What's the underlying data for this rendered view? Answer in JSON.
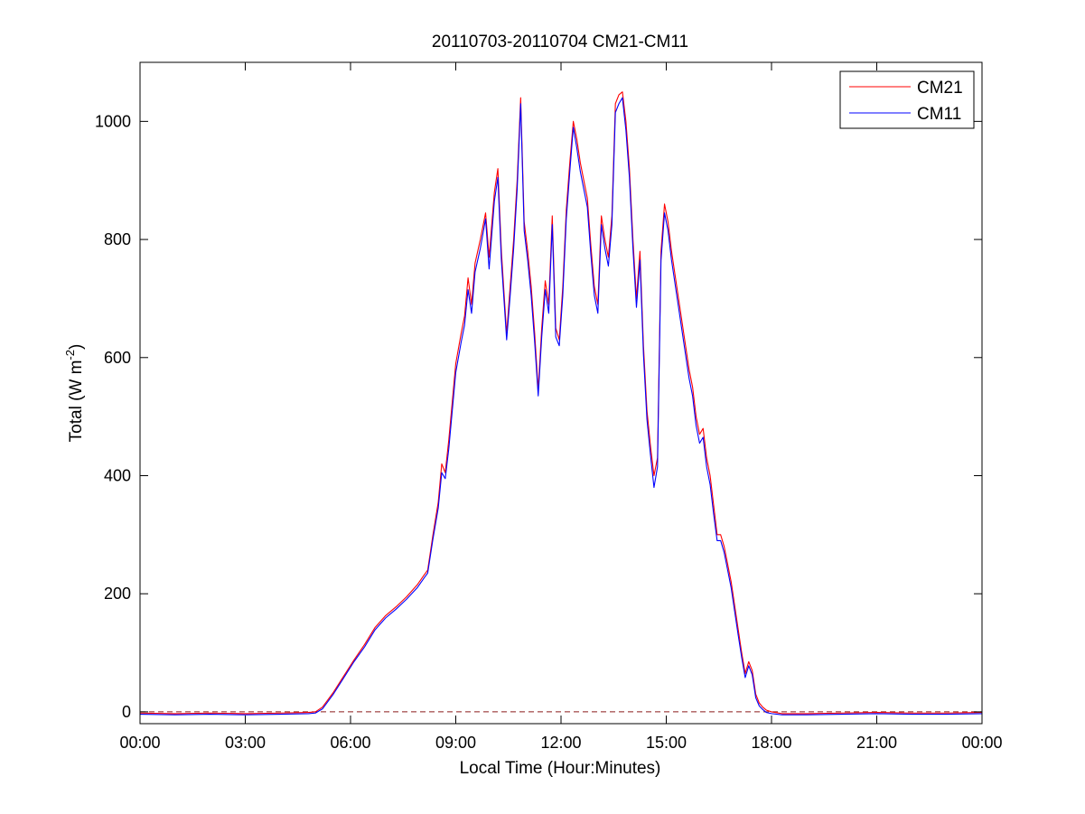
{
  "chart_data": {
    "type": "line",
    "title": "20110703-20110704 CM21-CM11",
    "xlabel": "Local Time (Hour:Minutes)",
    "ylabel_parts": {
      "main": "Total (W m",
      "sup": "-2",
      "close": ")"
    },
    "xlim": [
      0,
      24
    ],
    "ylim": [
      -20,
      1100
    ],
    "x_ticks": [
      0,
      3,
      6,
      9,
      12,
      15,
      18,
      21,
      24
    ],
    "x_tick_labels": [
      "00:00",
      "03:00",
      "06:00",
      "09:00",
      "12:00",
      "15:00",
      "18:00",
      "21:00",
      "00:00"
    ],
    "y_ticks": [
      0,
      200,
      400,
      600,
      800,
      1000
    ],
    "y_tick_labels": [
      "0",
      "200",
      "400",
      "600",
      "800",
      "1000"
    ],
    "legend_position": "top-right",
    "reference_line": {
      "y": 0,
      "style": "dashed",
      "color": "#8b1a1a"
    },
    "series": [
      {
        "name": "CM21",
        "color": "#ff0000",
        "points": [
          [
            0.0,
            -2
          ],
          [
            1.0,
            -3
          ],
          [
            2.0,
            -2
          ],
          [
            3.0,
            -3
          ],
          [
            4.0,
            -2
          ],
          [
            4.8,
            -1
          ],
          [
            5.0,
            0
          ],
          [
            5.2,
            8
          ],
          [
            5.5,
            32
          ],
          [
            5.8,
            60
          ],
          [
            6.1,
            88
          ],
          [
            6.4,
            114
          ],
          [
            6.7,
            143
          ],
          [
            7.0,
            163
          ],
          [
            7.3,
            178
          ],
          [
            7.6,
            195
          ],
          [
            7.9,
            215
          ],
          [
            8.1,
            232
          ],
          [
            8.2,
            240
          ],
          [
            8.35,
            300
          ],
          [
            8.5,
            355
          ],
          [
            8.6,
            420
          ],
          [
            8.7,
            405
          ],
          [
            8.8,
            460
          ],
          [
            8.9,
            525
          ],
          [
            9.0,
            590
          ],
          [
            9.15,
            640
          ],
          [
            9.25,
            670
          ],
          [
            9.35,
            735
          ],
          [
            9.45,
            690
          ],
          [
            9.55,
            760
          ],
          [
            9.7,
            800
          ],
          [
            9.85,
            845
          ],
          [
            9.95,
            770
          ],
          [
            10.1,
            880
          ],
          [
            10.2,
            920
          ],
          [
            10.3,
            780
          ],
          [
            10.45,
            640
          ],
          [
            10.55,
            720
          ],
          [
            10.65,
            800
          ],
          [
            10.75,
            900
          ],
          [
            10.85,
            1040
          ],
          [
            10.95,
            830
          ],
          [
            11.05,
            780
          ],
          [
            11.15,
            720
          ],
          [
            11.25,
            640
          ],
          [
            11.35,
            545
          ],
          [
            11.45,
            650
          ],
          [
            11.55,
            730
          ],
          [
            11.65,
            690
          ],
          [
            11.75,
            840
          ],
          [
            11.85,
            650
          ],
          [
            11.95,
            630
          ],
          [
            12.05,
            720
          ],
          [
            12.15,
            850
          ],
          [
            12.25,
            930
          ],
          [
            12.35,
            1000
          ],
          [
            12.45,
            970
          ],
          [
            12.55,
            930
          ],
          [
            12.65,
            900
          ],
          [
            12.75,
            870
          ],
          [
            12.85,
            790
          ],
          [
            12.95,
            720
          ],
          [
            13.05,
            690
          ],
          [
            13.15,
            840
          ],
          [
            13.25,
            800
          ],
          [
            13.35,
            770
          ],
          [
            13.45,
            840
          ],
          [
            13.55,
            1030
          ],
          [
            13.65,
            1045
          ],
          [
            13.75,
            1050
          ],
          [
            13.85,
            1000
          ],
          [
            13.95,
            920
          ],
          [
            14.05,
            800
          ],
          [
            14.15,
            700
          ],
          [
            14.25,
            780
          ],
          [
            14.35,
            620
          ],
          [
            14.45,
            510
          ],
          [
            14.55,
            450
          ],
          [
            14.65,
            400
          ],
          [
            14.75,
            430
          ],
          [
            14.85,
            780
          ],
          [
            14.95,
            860
          ],
          [
            15.05,
            830
          ],
          [
            15.15,
            780
          ],
          [
            15.25,
            740
          ],
          [
            15.35,
            700
          ],
          [
            15.45,
            660
          ],
          [
            15.55,
            620
          ],
          [
            15.65,
            580
          ],
          [
            15.75,
            550
          ],
          [
            15.85,
            500
          ],
          [
            15.95,
            470
          ],
          [
            16.05,
            480
          ],
          [
            16.15,
            430
          ],
          [
            16.25,
            400
          ],
          [
            16.35,
            350
          ],
          [
            16.45,
            300
          ],
          [
            16.55,
            300
          ],
          [
            16.65,
            280
          ],
          [
            16.75,
            250
          ],
          [
            16.85,
            220
          ],
          [
            16.95,
            180
          ],
          [
            17.05,
            140
          ],
          [
            17.15,
            100
          ],
          [
            17.25,
            65
          ],
          [
            17.35,
            85
          ],
          [
            17.45,
            70
          ],
          [
            17.55,
            30
          ],
          [
            17.65,
            15
          ],
          [
            17.75,
            8
          ],
          [
            17.85,
            3
          ],
          [
            18.0,
            0
          ],
          [
            18.3,
            -3
          ],
          [
            19.0,
            -3
          ],
          [
            20.0,
            -2
          ],
          [
            21.0,
            -1
          ],
          [
            22.0,
            -2
          ],
          [
            23.0,
            -2
          ],
          [
            24.0,
            -1
          ]
        ]
      },
      {
        "name": "CM11",
        "color": "#0000ff",
        "points": [
          [
            0.0,
            -4
          ],
          [
            1.0,
            -5
          ],
          [
            2.0,
            -4
          ],
          [
            3.0,
            -5
          ],
          [
            4.0,
            -4
          ],
          [
            4.8,
            -3
          ],
          [
            5.0,
            -2
          ],
          [
            5.2,
            5
          ],
          [
            5.5,
            29
          ],
          [
            5.8,
            57
          ],
          [
            6.1,
            85
          ],
          [
            6.4,
            110
          ],
          [
            6.7,
            139
          ],
          [
            7.0,
            159
          ],
          [
            7.3,
            174
          ],
          [
            7.6,
            191
          ],
          [
            7.9,
            210
          ],
          [
            8.1,
            227
          ],
          [
            8.2,
            235
          ],
          [
            8.35,
            293
          ],
          [
            8.5,
            345
          ],
          [
            8.6,
            405
          ],
          [
            8.7,
            395
          ],
          [
            8.8,
            445
          ],
          [
            8.9,
            510
          ],
          [
            9.0,
            575
          ],
          [
            9.15,
            625
          ],
          [
            9.25,
            655
          ],
          [
            9.35,
            715
          ],
          [
            9.45,
            675
          ],
          [
            9.55,
            745
          ],
          [
            9.7,
            785
          ],
          [
            9.85,
            835
          ],
          [
            9.95,
            750
          ],
          [
            10.1,
            865
          ],
          [
            10.2,
            905
          ],
          [
            10.3,
            765
          ],
          [
            10.45,
            630
          ],
          [
            10.55,
            705
          ],
          [
            10.65,
            785
          ],
          [
            10.75,
            885
          ],
          [
            10.85,
            1030
          ],
          [
            10.95,
            815
          ],
          [
            11.05,
            765
          ],
          [
            11.15,
            705
          ],
          [
            11.25,
            625
          ],
          [
            11.35,
            535
          ],
          [
            11.45,
            635
          ],
          [
            11.55,
            715
          ],
          [
            11.65,
            675
          ],
          [
            11.75,
            825
          ],
          [
            11.85,
            635
          ],
          [
            11.95,
            620
          ],
          [
            12.05,
            705
          ],
          [
            12.15,
            835
          ],
          [
            12.25,
            915
          ],
          [
            12.35,
            990
          ],
          [
            12.45,
            955
          ],
          [
            12.55,
            915
          ],
          [
            12.65,
            885
          ],
          [
            12.75,
            855
          ],
          [
            12.85,
            775
          ],
          [
            12.95,
            705
          ],
          [
            13.05,
            675
          ],
          [
            13.15,
            825
          ],
          [
            13.25,
            785
          ],
          [
            13.35,
            755
          ],
          [
            13.45,
            825
          ],
          [
            13.55,
            1015
          ],
          [
            13.65,
            1030
          ],
          [
            13.75,
            1040
          ],
          [
            13.85,
            985
          ],
          [
            13.95,
            905
          ],
          [
            14.05,
            785
          ],
          [
            14.15,
            685
          ],
          [
            14.25,
            765
          ],
          [
            14.35,
            605
          ],
          [
            14.45,
            495
          ],
          [
            14.55,
            435
          ],
          [
            14.65,
            380
          ],
          [
            14.75,
            415
          ],
          [
            14.85,
            765
          ],
          [
            14.95,
            845
          ],
          [
            15.05,
            815
          ],
          [
            15.15,
            765
          ],
          [
            15.25,
            725
          ],
          [
            15.35,
            685
          ],
          [
            15.45,
            645
          ],
          [
            15.55,
            605
          ],
          [
            15.65,
            565
          ],
          [
            15.75,
            535
          ],
          [
            15.85,
            485
          ],
          [
            15.95,
            455
          ],
          [
            16.05,
            465
          ],
          [
            16.15,
            415
          ],
          [
            16.25,
            385
          ],
          [
            16.35,
            335
          ],
          [
            16.45,
            290
          ],
          [
            16.55,
            290
          ],
          [
            16.65,
            270
          ],
          [
            16.75,
            240
          ],
          [
            16.85,
            210
          ],
          [
            16.95,
            170
          ],
          [
            17.05,
            130
          ],
          [
            17.15,
            92
          ],
          [
            17.25,
            58
          ],
          [
            17.35,
            78
          ],
          [
            17.45,
            63
          ],
          [
            17.55,
            24
          ],
          [
            17.65,
            10
          ],
          [
            17.75,
            4
          ],
          [
            17.85,
            -1
          ],
          [
            18.0,
            -3
          ],
          [
            18.3,
            -5
          ],
          [
            19.0,
            -5
          ],
          [
            20.0,
            -4
          ],
          [
            21.0,
            -3
          ],
          [
            22.0,
            -4
          ],
          [
            23.0,
            -4
          ],
          [
            24.0,
            -3
          ]
        ]
      }
    ]
  }
}
